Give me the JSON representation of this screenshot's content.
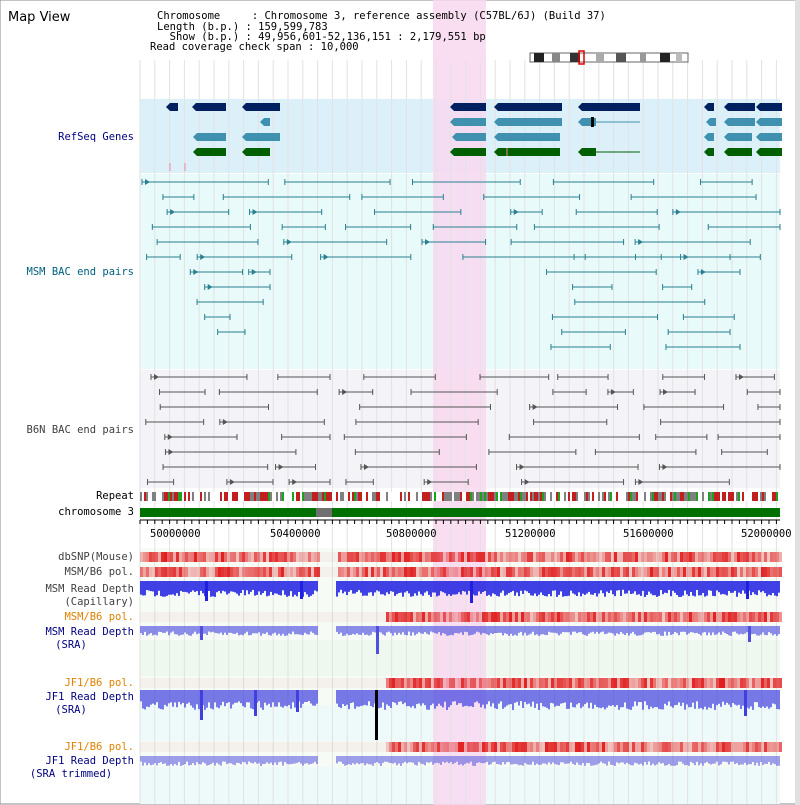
{
  "app": {
    "title": "Map View"
  },
  "header": {
    "chromosome_line": "Chromosome     : Chromosome 3, reference assembly (C57BL/6J) (Build 37)",
    "length_line": "Length (b.p.) : 159,599,783",
    "show_line": "  Show (b.p.) : 49,956,601-52,136,151 : 2,179,551 bp",
    "coverage_line": "Read coverage check span : 10,000"
  },
  "tracks": {
    "refseq": {
      "label": "RefSeq Genes",
      "color": "#000080"
    },
    "msm_bac": {
      "label": "MSM BAC end pairs",
      "color": "#006080"
    },
    "b6n_bac": {
      "label": "B6N BAC end pairs",
      "color": "#404040"
    },
    "repeat": {
      "label": "Repeat"
    },
    "chrom": {
      "label": "chromosome 3"
    },
    "dbsnp": {
      "label": "dbSNP(Mouse)"
    },
    "msm_b6_pol_1": {
      "label": "MSM/B6 pol."
    },
    "msm_read_cap": {
      "label1": "MSM Read Depth",
      "label2": "(Capillary)"
    },
    "msm_b6_pol_2": {
      "label": "MSM/B6 pol."
    },
    "msm_read_sra": {
      "label1": "MSM Read Depth",
      "label2": "(SRA)"
    },
    "jf1_b6_pol_1": {
      "label": "JF1/B6 pol."
    },
    "jf1_read_sra": {
      "label1": "JF1 Read Depth",
      "label2": "(SRA)"
    },
    "jf1_b6_pol_2": {
      "label": "JF1/B6 pol."
    },
    "jf1_read_trim": {
      "label1": "JF1 Read Depth",
      "label2": "(SRA trimmed)"
    }
  },
  "axis": {
    "ticks": [
      "50000000",
      "50400000",
      "50800000",
      "51200000",
      "51600000",
      "52000000"
    ]
  },
  "colors": {
    "highlight": "#f8d8f0",
    "refseq_bg": "#dcf0fa",
    "msm_bg": "#e8fafa",
    "chrom_green": "#007000",
    "gene_dark": "#002060",
    "gene_mid": "#4090b0",
    "gene_green": "#006000",
    "snp_red": "#e02020",
    "depth_blue": "#2020e0",
    "label_orange": "#e08000",
    "label_navy": "#000080"
  }
}
